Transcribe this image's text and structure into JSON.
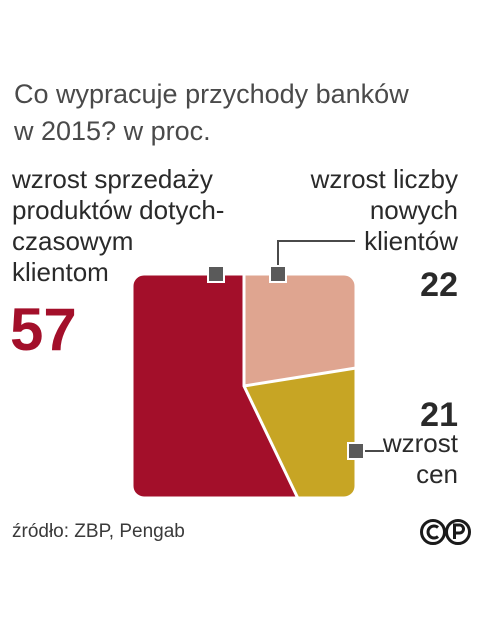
{
  "title_lines": [
    "Co wypracuje  przychody banków",
    "w 2015? w proc."
  ],
  "source": "źródło: ZBP, Pengab",
  "license_icon": "copyright-cc-icon",
  "colors": {
    "sales": "#a30f2a",
    "new_clients": "#dfa590",
    "prices": "#c7a524",
    "marker": "#5a5a5a"
  },
  "chart_data": {
    "type": "pie",
    "title": "Co wypracuje  przychody banków w 2015? w proc.",
    "unit": "w proc.",
    "slices": [
      {
        "key": "sales",
        "label_lines": [
          "wzrost sprzedaży",
          "produktów dotych-",
          "czasowym",
          "klientom"
        ],
        "value": 57
      },
      {
        "key": "new_clients",
        "label_lines": [
          "wzrost liczby",
          "nowych",
          "klientów"
        ],
        "value": 22
      },
      {
        "key": "prices",
        "label_lines": [
          "wzrost",
          "cen"
        ],
        "value": 21
      }
    ]
  }
}
